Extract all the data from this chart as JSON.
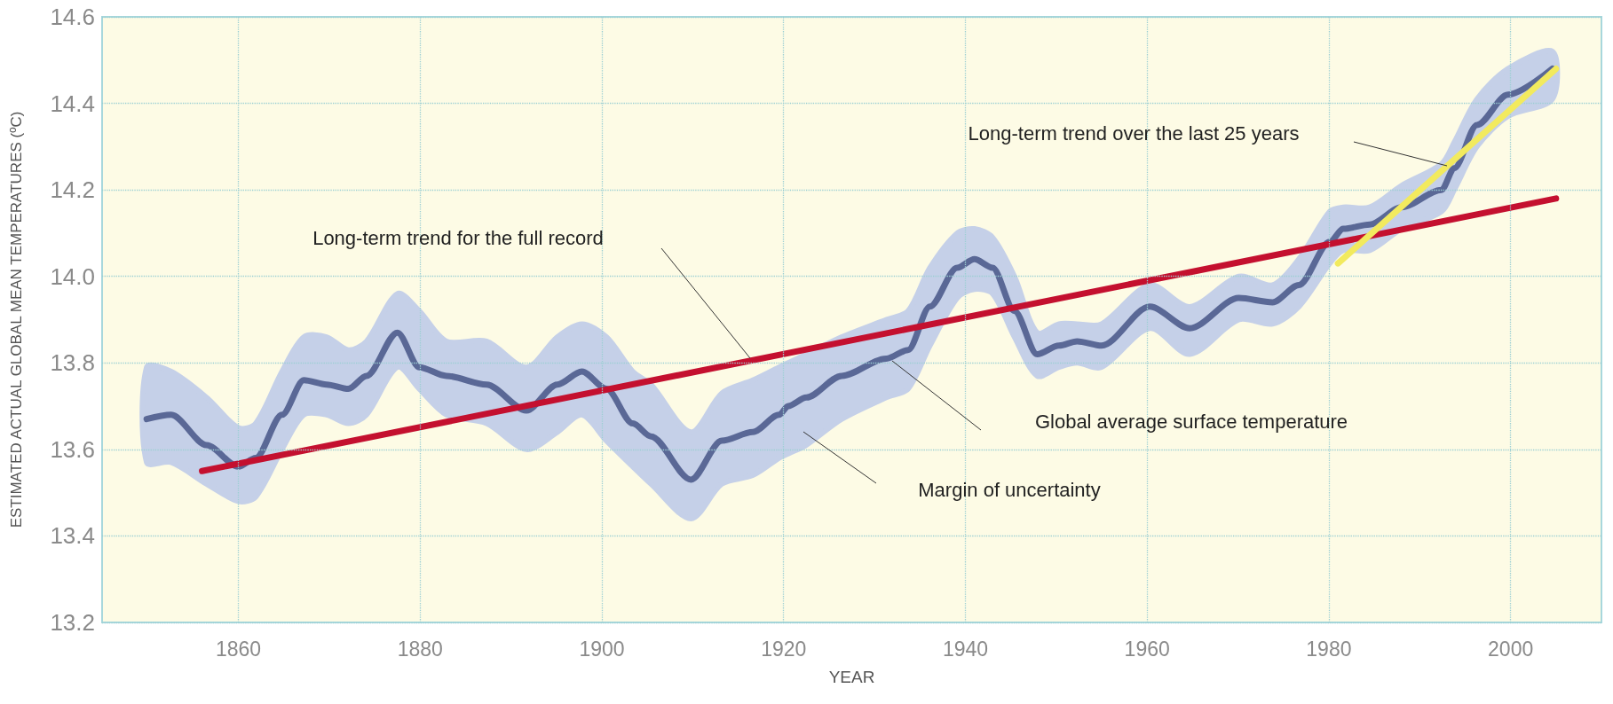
{
  "chart_data": {
    "type": "line",
    "xlabel": "YEAR",
    "ylabel": "ESTIMATED ACTUAL GLOBAL MEAN TEMPERATURES (ºC)",
    "xlim": [
      1845,
      2010
    ],
    "xticks": [
      1860,
      1880,
      1900,
      1920,
      1940,
      1960,
      1980,
      2000
    ],
    "ylim": [
      13.2,
      14.6
    ],
    "yticks": [
      13.2,
      13.4,
      13.6,
      13.8,
      {
        "value": 14,
        "label": "14.0"
      },
      14.2,
      14.4,
      14.6
    ],
    "grid": true,
    "marker": "none",
    "line_style": "solid",
    "series": [
      {
        "color": "#5a6896",
        "x": [
          1849.9,
          1852.6,
          1856.5,
          1860,
          1861.9,
          1864.8,
          1867.2,
          1869.7,
          1872.1,
          1874.1,
          1877.5,
          1879.9,
          1882.9,
          1887.3,
          1891.7,
          1895.1,
          1897.8,
          1900.5,
          1903.4,
          1905.4,
          1909.8,
          1913.2,
          1916.6,
          1919.5,
          1920.5,
          1922.5,
          1926.4,
          1931.3,
          1933.7,
          1936.1,
          1939.1,
          1941.0,
          1943.0,
          1945.4,
          1947.9,
          1950.3,
          1952.3,
          1955.0,
          1960.3,
          1964.7,
          1970.1,
          1973.8,
          1976.7,
          1980.1,
          1981.6,
          1984.5,
          1988.0,
          1992.4,
          1993.8,
          1996.3,
          1999.7,
          2004.6
        ],
        "values": [
          13.67,
          13.68,
          13.61,
          13.56,
          13.58,
          13.68,
          13.76,
          13.75,
          13.74,
          13.77,
          13.87,
          13.79,
          13.77,
          13.75,
          13.69,
          13.75,
          13.78,
          13.74,
          13.66,
          13.63,
          13.53,
          13.62,
          13.64,
          13.68,
          13.7,
          13.72,
          13.77,
          13.81,
          13.83,
          13.93,
          14.02,
          14.04,
          14.02,
          13.92,
          13.82,
          13.84,
          13.85,
          13.84,
          13.93,
          13.88,
          13.95,
          13.94,
          13.98,
          14.08,
          14.11,
          14.12,
          14.16,
          14.2,
          14.25,
          14.35,
          14.42,
          14.48
        ],
        "upper": [
          13.79,
          13.78,
          13.72,
          13.65,
          13.66,
          13.78,
          13.86,
          13.86,
          13.83,
          13.85,
          13.96,
          13.92,
          13.85,
          13.85,
          13.79,
          13.86,
          13.89,
          13.86,
          13.78,
          13.75,
          13.64,
          13.73,
          13.76,
          13.79,
          13.8,
          13.82,
          13.86,
          13.9,
          13.92,
          14.02,
          14.1,
          14.11,
          14.09,
          14.0,
          13.87,
          13.89,
          13.89,
          13.89,
          13.98,
          13.93,
          14.0,
          13.98,
          14.04,
          14.15,
          14.16,
          14.16,
          14.21,
          14.26,
          14.31,
          14.41,
          14.48,
          14.52
        ],
        "lower": [
          13.57,
          13.57,
          13.52,
          13.48,
          13.49,
          13.6,
          13.68,
          13.68,
          13.66,
          13.68,
          13.79,
          13.74,
          13.68,
          13.66,
          13.6,
          13.64,
          13.68,
          13.62,
          13.56,
          13.52,
          13.44,
          13.52,
          13.54,
          13.58,
          13.59,
          13.61,
          13.67,
          13.72,
          13.74,
          13.84,
          13.95,
          13.97,
          13.96,
          13.86,
          13.77,
          13.79,
          13.8,
          13.79,
          13.88,
          13.82,
          13.9,
          13.89,
          13.93,
          14.03,
          14.06,
          14.06,
          14.11,
          14.15,
          14.2,
          14.3,
          14.37,
          14.41
        ]
      },
      {
        "type": "line",
        "color": "#c4102f",
        "x": [
          1856,
          2005
        ],
        "values": [
          13.55,
          14.18
        ]
      },
      {
        "type": "line",
        "color": "#f2ea5e",
        "x": [
          1981,
          2005
        ],
        "values": [
          14.03,
          14.48
        ]
      }
    ],
    "annotations": [
      "Long-term trend for the full record",
      "Long-term trend over the last 25 years",
      "Global average surface temperature",
      "Margin of uncertainty"
    ]
  }
}
